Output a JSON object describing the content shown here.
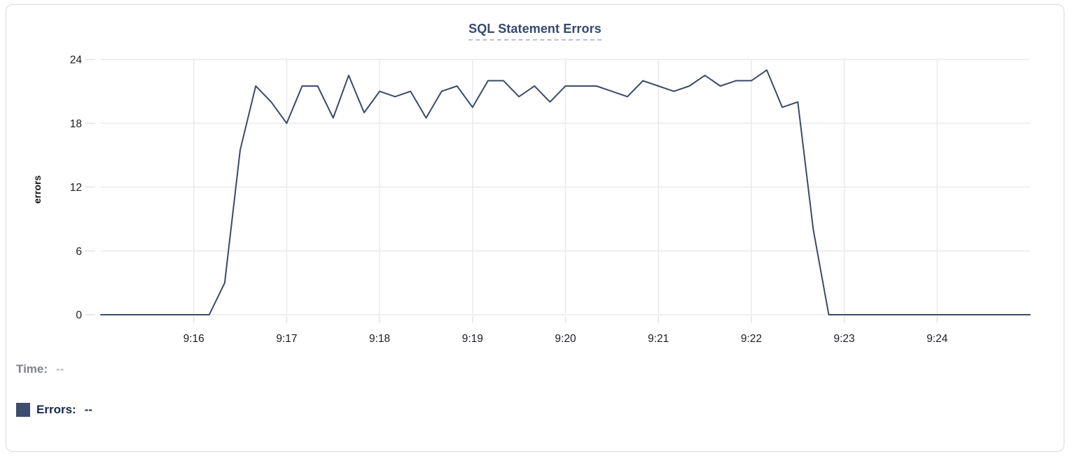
{
  "card": {
    "background": "#ffffff",
    "border_color": "#d8d9dd"
  },
  "legend": {
    "time_label": "Time:",
    "time_value": "--",
    "errors_label": "Errors:",
    "errors_value": "--",
    "swatch_color": "#3e4d6e"
  },
  "chart_data": {
    "type": "line",
    "title": "SQL Statement Errors",
    "xlabel": "",
    "ylabel": "errors",
    "ylim": [
      0,
      24
    ],
    "y_ticks": [
      0,
      6,
      12,
      18,
      24
    ],
    "x_start": "9:15:00",
    "x_end": "9:25:00",
    "x_tick_labels": [
      "9:16",
      "9:17",
      "9:18",
      "9:19",
      "9:20",
      "9:21",
      "9:22",
      "9:23",
      "9:24"
    ],
    "grid": true,
    "legend_position": "bottom-left",
    "series": [
      {
        "name": "Errors",
        "color": "#3b4a68",
        "times": [
          "9:15:00",
          "9:15:10",
          "9:15:20",
          "9:15:30",
          "9:15:40",
          "9:15:50",
          "9:16:00",
          "9:16:10",
          "9:16:20",
          "9:16:30",
          "9:16:40",
          "9:16:50",
          "9:17:00",
          "9:17:10",
          "9:17:20",
          "9:17:30",
          "9:17:40",
          "9:17:50",
          "9:18:00",
          "9:18:10",
          "9:18:20",
          "9:18:30",
          "9:18:40",
          "9:18:50",
          "9:19:00",
          "9:19:10",
          "9:19:20",
          "9:19:30",
          "9:19:40",
          "9:19:50",
          "9:20:00",
          "9:20:10",
          "9:20:20",
          "9:20:30",
          "9:20:40",
          "9:20:50",
          "9:21:00",
          "9:21:10",
          "9:21:20",
          "9:21:30",
          "9:21:40",
          "9:21:50",
          "9:22:00",
          "9:22:10",
          "9:22:20",
          "9:22:30",
          "9:22:40",
          "9:22:50",
          "9:23:00",
          "9:23:10",
          "9:23:20",
          "9:23:30",
          "9:23:40",
          "9:23:50",
          "9:24:00",
          "9:24:10",
          "9:24:20",
          "9:24:30",
          "9:24:40",
          "9:24:50",
          "9:25:00"
        ],
        "values": [
          0,
          0,
          0,
          0,
          0,
          0,
          0,
          0,
          3,
          15.5,
          21.5,
          20,
          18,
          21.5,
          21.5,
          18.5,
          22.5,
          19,
          21,
          20.5,
          21,
          18.5,
          21,
          21.5,
          19.5,
          22,
          22,
          20.5,
          21.5,
          20,
          21.5,
          21.5,
          21.5,
          21,
          20.5,
          22,
          21.5,
          21,
          21.5,
          22.5,
          21.5,
          22,
          22,
          23,
          19.5,
          20,
          8,
          0,
          0,
          0,
          0,
          0,
          0,
          0,
          0,
          0,
          0,
          0,
          0,
          0,
          0
        ]
      }
    ]
  }
}
